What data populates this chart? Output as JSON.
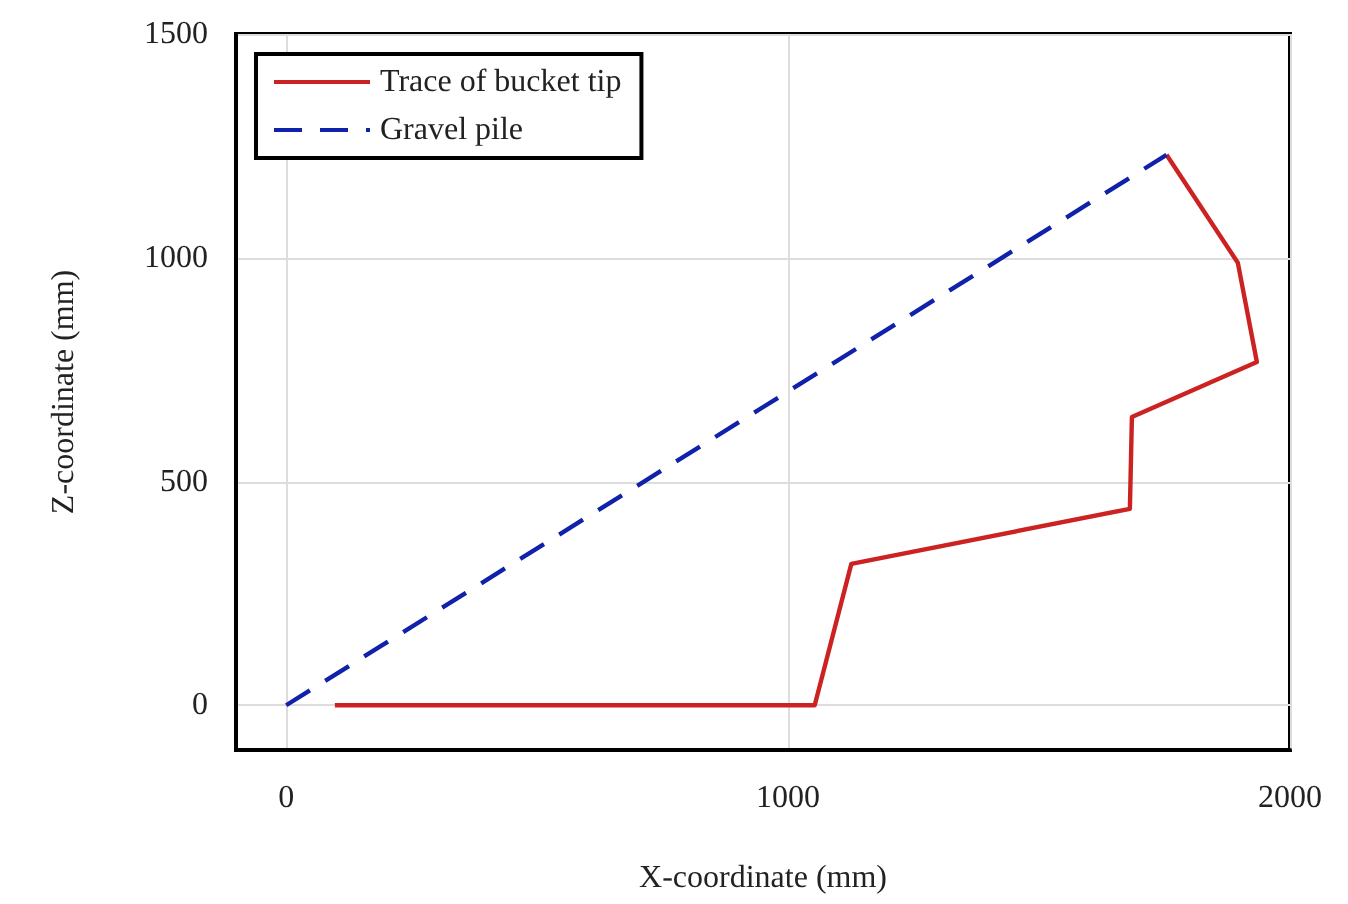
{
  "chart_data": {
    "type": "line",
    "xlabel": "X-coordinate (mm)",
    "ylabel": "Z-coordinate (mm)",
    "xlim": [
      -100,
      2000
    ],
    "xticks": [
      0,
      1000,
      2000
    ],
    "ylim": [
      -100,
      1500
    ],
    "yticks": [
      0,
      500,
      1000,
      1500
    ],
    "grid": true,
    "legend": "top left",
    "marker": "none",
    "series": [
      {
        "name": "Trace of bucket tip",
        "color": "#cc2222",
        "line_style": "solid",
        "x": [
          97,
          1053,
          1126,
          1681,
          1685,
          1934,
          1896,
          1754
        ],
        "values": [
          0,
          0,
          316,
          439,
          644,
          767,
          989,
          1230
        ]
      },
      {
        "name": "Gravel pile",
        "color": "#1122aa",
        "line_style": "dashed",
        "x": [
          0,
          1754
        ],
        "values": [
          0,
          1230
        ]
      }
    ]
  }
}
